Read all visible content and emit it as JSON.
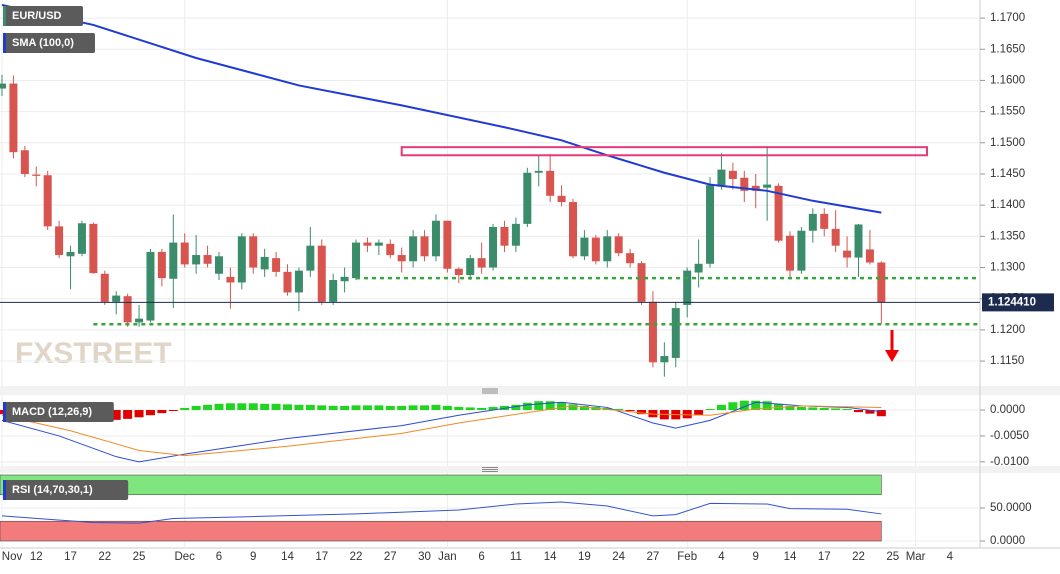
{
  "chart_data": {
    "type": "candlestick",
    "watermark": "FXSTREET",
    "categories": [
      "Nov",
      null,
      null,
      "12",
      null,
      null,
      "17",
      null,
      null,
      "22",
      null,
      null,
      "25",
      null,
      null,
      null,
      "Dec",
      null,
      null,
      "6",
      null,
      null,
      "9",
      null,
      null,
      "14",
      null,
      null,
      "17",
      null,
      null,
      "22",
      null,
      null,
      "27",
      null,
      null,
      "30",
      null,
      "Jan",
      null,
      null,
      "6",
      null,
      null,
      "11",
      null,
      null,
      "14",
      null,
      null,
      "19",
      null,
      null,
      "24",
      null,
      null,
      "27",
      null,
      null,
      "Feb",
      null,
      null,
      "4",
      null,
      null,
      "9",
      null,
      null,
      "14",
      null,
      null,
      "17",
      null,
      null,
      "22",
      null,
      null,
      "25",
      null,
      "Mar",
      null,
      null,
      "4"
    ],
    "ylim": [
      1.111,
      1.1729
    ],
    "yticks": [
      {
        "value": 1.115,
        "label": "1.1150"
      },
      {
        "value": 1.12,
        "label": "1.1200"
      },
      {
        "value": 1.125,
        "label": "1.1250"
      },
      {
        "value": 1.13,
        "label": "1.1300"
      },
      {
        "value": 1.135,
        "label": "1.1350"
      },
      {
        "value": 1.14,
        "label": "1.1400"
      },
      {
        "value": 1.145,
        "label": "1.1450"
      },
      {
        "value": 1.15,
        "label": "1.1500"
      },
      {
        "value": 1.155,
        "label": "1.1550"
      },
      {
        "value": 1.16,
        "label": "1.1600"
      },
      {
        "value": 1.165,
        "label": "1.1650"
      },
      {
        "value": 1.17,
        "label": "1.1700"
      }
    ],
    "grid": true,
    "series": [
      {
        "name": "EUR/USD",
        "up_color": "#3b8c6b",
        "down_color": "#d8544e",
        "open": [
          1.1587,
          1.1595,
          1.1488,
          1.1449,
          1.1448,
          1.1366,
          1.1318,
          1.1322,
          1.137,
          1.129,
          1.1245,
          1.1254,
          1.1212,
          1.1215,
          1.1325,
          1.1282,
          1.134,
          1.1305,
          1.132,
          1.129,
          1.1285,
          1.1276,
          1.135,
          1.1297,
          1.1315,
          1.1293,
          1.126,
          1.1295,
          1.1335,
          1.1245,
          1.1278,
          1.1283,
          1.134,
          1.1335,
          1.1338,
          1.132,
          1.131,
          1.135,
          1.1318,
          1.1375,
          1.1298,
          1.1288,
          1.1315,
          1.13,
          1.1365,
          1.1335,
          1.137,
          1.1452,
          1.1455,
          1.1415,
          1.1405,
          1.1318,
          1.1348,
          1.131,
          1.135,
          1.1323,
          1.1307,
          1.1245,
          1.1148,
          1.1155,
          1.124,
          1.1292,
          1.1306,
          1.1432,
          1.1455,
          1.1444,
          1.1431,
          1.1428,
          1.1431,
          1.1351,
          1.1295,
          1.1359,
          1.1386,
          1.1362,
          1.1327,
          1.1316,
          1.1329,
          1.1308,
          null,
          null,
          null,
          null,
          null,
          null
        ],
        "high": [
          1.1609,
          1.1608,
          1.1495,
          1.1462,
          1.1455,
          1.1375,
          1.1335,
          1.1375,
          1.1372,
          1.1295,
          1.1262,
          1.1258,
          1.124,
          1.133,
          1.133,
          1.1385,
          1.1355,
          1.1352,
          1.1335,
          1.1325,
          1.13,
          1.1355,
          1.1355,
          1.133,
          1.1325,
          1.1305,
          1.13,
          1.1365,
          1.1345,
          1.129,
          1.13,
          1.1345,
          1.1348,
          1.1345,
          1.1345,
          1.1332,
          1.136,
          1.136,
          1.1385,
          1.1375,
          1.13,
          1.132,
          1.134,
          1.137,
          1.1375,
          1.138,
          1.146,
          1.148,
          1.1482,
          1.1432,
          1.141,
          1.136,
          1.1352,
          1.136,
          1.1355,
          1.133,
          1.131,
          1.1262,
          1.118,
          1.1245,
          1.13,
          1.1345,
          1.1445,
          1.1483,
          1.1468,
          1.1455,
          1.145,
          1.1495,
          1.1435,
          1.1358,
          1.1365,
          1.1395,
          1.1395,
          1.1392,
          1.135,
          1.137,
          1.136,
          1.131,
          null,
          null,
          null,
          null,
          null,
          null
        ],
        "low": [
          1.1575,
          1.1475,
          1.1445,
          1.143,
          1.136,
          1.1315,
          1.1265,
          1.1318,
          1.129,
          1.124,
          1.1225,
          1.1205,
          1.1205,
          1.1212,
          1.127,
          1.1235,
          1.13,
          1.129,
          1.13,
          1.128,
          1.1234,
          1.1265,
          1.129,
          1.1285,
          1.1285,
          1.1255,
          1.123,
          1.1285,
          1.124,
          1.124,
          1.126,
          1.128,
          1.1325,
          1.132,
          1.1315,
          1.1292,
          1.13,
          1.131,
          1.131,
          1.1292,
          1.1275,
          1.128,
          1.129,
          1.1295,
          1.1325,
          1.1325,
          1.1365,
          1.143,
          1.1405,
          1.1398,
          1.1315,
          1.1312,
          1.1305,
          1.13,
          1.1318,
          1.13,
          1.124,
          1.114,
          1.1125,
          1.114,
          1.122,
          1.1268,
          1.13,
          1.1425,
          1.1425,
          1.1405,
          1.1395,
          1.1375,
          1.134,
          1.1285,
          1.129,
          1.134,
          1.135,
          1.1325,
          1.13,
          1.1285,
          1.1305,
          1.121,
          null,
          null,
          null,
          null,
          null,
          null
        ],
        "close": [
          1.1595,
          1.1485,
          1.145,
          1.1447,
          1.1366,
          1.132,
          1.1325,
          1.1371,
          1.1291,
          1.1245,
          1.1255,
          1.1212,
          1.1218,
          1.1325,
          1.1283,
          1.134,
          1.1305,
          1.132,
          1.1306,
          1.1318,
          1.1276,
          1.135,
          1.13,
          1.1317,
          1.1293,
          1.126,
          1.1295,
          1.1335,
          1.1245,
          1.128,
          1.1285,
          1.134,
          1.1335,
          1.134,
          1.132,
          1.131,
          1.135,
          1.1318,
          1.1375,
          1.1298,
          1.1288,
          1.1315,
          1.13,
          1.1365,
          1.1335,
          1.137,
          1.1452,
          1.1455,
          1.1415,
          1.1405,
          1.1318,
          1.1348,
          1.131,
          1.135,
          1.1323,
          1.1307,
          1.1245,
          1.1148,
          1.1158,
          1.1235,
          1.1295,
          1.1306,
          1.1432,
          1.1457,
          1.1442,
          1.1423,
          1.1423,
          1.1433,
          1.1343,
          1.1295,
          1.1359,
          1.1386,
          1.1362,
          1.1335,
          1.1316,
          1.1369,
          1.1308,
          1.1244,
          null,
          null,
          null,
          null,
          null,
          null
        ]
      }
    ],
    "sma": {
      "name": "SMA (100,0)",
      "color": "#1f3bd4",
      "x": [
        0,
        8,
        17,
        26,
        35,
        44,
        49,
        53,
        58,
        62,
        67,
        71,
        77
      ],
      "values": [
        1.1721,
        1.1689,
        1.1636,
        1.1592,
        1.156,
        1.1525,
        1.1504,
        1.148,
        1.1452,
        1.1433,
        1.1423,
        1.1407,
        1.1388
      ]
    },
    "last_price": {
      "value": 1.12441,
      "label": "1.124410"
    },
    "support_levels": [
      {
        "value": 1.1283,
        "from": 31
      },
      {
        "value": 1.1209,
        "from": 8
      }
    ],
    "resistance_zone": {
      "x": [
        35,
        81
      ],
      "y": [
        1.148,
        1.1493
      ]
    },
    "indicators": [
      {
        "type": "macd",
        "title": "MACD (12,26,9)",
        "ylim": [
          -0.0108,
          0.0029
        ],
        "yticks": [
          {
            "value": 0,
            "label": "0.0000"
          },
          {
            "value": -0.005,
            "label": "-0.0050"
          },
          {
            "value": -0.01,
            "label": "-0.0100"
          }
        ],
        "histogram": {
          "up_color": "#22d422",
          "down_color": "#e00000",
          "values": [
            -0.0008,
            -0.0012,
            -0.0015,
            -0.0018,
            -0.002,
            -0.0022,
            -0.0022,
            -0.0021,
            -0.002,
            -0.002,
            -0.0019,
            -0.0017,
            -0.0014,
            -0.001,
            -0.0006,
            -0.0002,
            0.0004,
            0.0008,
            0.001,
            0.0012,
            0.0013,
            0.0013,
            0.0013,
            0.0012,
            0.0012,
            0.0011,
            0.001,
            0.001,
            0.0009,
            0.0008,
            0.0008,
            0.0009,
            0.0009,
            0.0009,
            0.0008,
            0.0008,
            0.0009,
            0.0009,
            0.001,
            0.0008,
            0.0006,
            0.0005,
            0.0004,
            0.0006,
            0.0008,
            0.001,
            0.0014,
            0.0017,
            0.0017,
            0.0015,
            0.0011,
            0.0008,
            0.0006,
            0.0004,
            0.0002,
            -0.0002,
            -0.0008,
            -0.0014,
            -0.0018,
            -0.0018,
            -0.0016,
            -0.001,
            0.0002,
            0.001,
            0.0015,
            0.0018,
            0.0018,
            0.0017,
            0.0012,
            0.0008,
            0.0006,
            0.0005,
            0.0004,
            0.0003,
            0.0002,
            -0.0004,
            -0.0007,
            -0.0012,
            null,
            null,
            null,
            null,
            null,
            null
          ]
        },
        "macd": {
          "color": "#2a4bd7",
          "x": [
            0,
            5,
            10,
            12,
            16,
            25,
            35,
            40,
            46,
            49,
            53,
            57,
            59,
            62,
            66,
            70,
            74,
            77
          ],
          "values": [
            -0.002,
            -0.005,
            -0.009,
            -0.01,
            -0.0085,
            -0.0055,
            -0.003,
            -0.001,
            0.001,
            0.0015,
            0.0005,
            -0.0025,
            -0.0035,
            -0.002,
            0.0015,
            0.0008,
            0.0005,
            -0.0003
          ]
        },
        "signal": {
          "color": "#f08a24",
          "x": [
            0,
            6,
            12,
            16,
            25,
            35,
            40,
            46,
            50,
            57,
            62,
            66,
            70,
            77
          ],
          "values": [
            -0.001,
            -0.004,
            -0.0078,
            -0.0088,
            -0.007,
            -0.0045,
            -0.0025,
            -0.0005,
            0.0008,
            -0.0008,
            -0.001,
            0.0002,
            0.0008,
            0.0005
          ]
        }
      },
      {
        "type": "rsi",
        "title": "RSI (14,70,30,1)",
        "ylim": [
          -10.6,
          103
        ],
        "yticks": [
          {
            "value": 50,
            "label": "50.0000"
          },
          {
            "value": 0,
            "label": "0.0000"
          }
        ],
        "bands": [
          {
            "range": [
              70,
              100
            ],
            "color": "#7fe67f"
          },
          {
            "range": [
              0,
              30
            ],
            "color": "#f27c7c"
          }
        ],
        "rsi": {
          "color": "#3355cc",
          "x": [
            0,
            4,
            8,
            12,
            15,
            22,
            31,
            40,
            45,
            49,
            53,
            57,
            59,
            62,
            67,
            69,
            74,
            77
          ],
          "values": [
            38,
            33,
            28,
            27,
            34,
            37,
            41,
            47,
            56,
            59,
            53,
            38,
            40,
            57,
            56,
            49,
            48,
            41
          ]
        }
      }
    ]
  }
}
